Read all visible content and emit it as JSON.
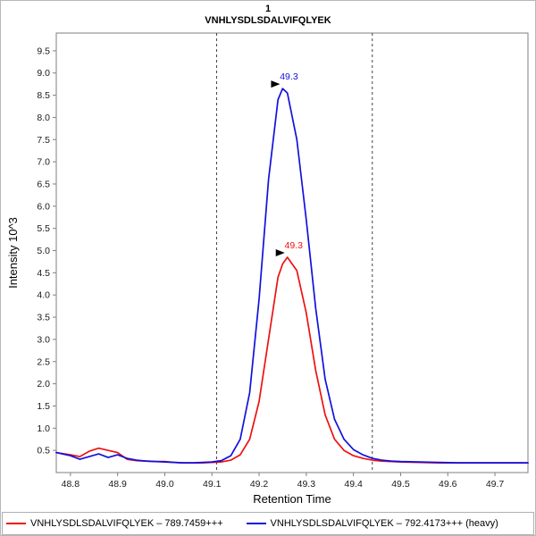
{
  "title": "1",
  "subtitle": "VNHLYSDLSDALVIFQLYEK",
  "chart_data": {
    "type": "line",
    "title": "1",
    "subtitle": "VNHLYSDLSDALVIFQLYEK",
    "xlabel": "Retention Time",
    "ylabel": "Intensity 10^3",
    "xlim": [
      48.77,
      49.77
    ],
    "ylim": [
      0,
      9.9
    ],
    "xticks": [
      48.8,
      48.9,
      49.0,
      49.1,
      49.2,
      49.3,
      49.4,
      49.5,
      49.6,
      49.7
    ],
    "yticks": [
      0.5,
      1.0,
      1.5,
      2.0,
      2.5,
      3.0,
      3.5,
      4.0,
      4.5,
      5.0,
      5.5,
      6.0,
      6.5,
      7.0,
      7.5,
      8.0,
      8.5,
      9.0,
      9.5
    ],
    "grid": false,
    "legend_position": "bottom",
    "boundary_lines_x": [
      49.11,
      49.44
    ],
    "boundary_color": "#444444",
    "series": [
      {
        "name": "light",
        "label": "VNHLYSDLSDALVIFQLYEK – 789.7459+++",
        "color": "#ee1111",
        "x": [
          48.77,
          48.8,
          48.82,
          48.84,
          48.86,
          48.88,
          48.9,
          48.92,
          48.94,
          48.96,
          48.98,
          49.0,
          49.02,
          49.04,
          49.06,
          49.08,
          49.1,
          49.12,
          49.14,
          49.16,
          49.18,
          49.2,
          49.22,
          49.24,
          49.25,
          49.26,
          49.28,
          49.3,
          49.32,
          49.34,
          49.36,
          49.38,
          49.4,
          49.42,
          49.44,
          49.46,
          49.48,
          49.5,
          49.54,
          49.58,
          49.62,
          49.66,
          49.7,
          49.74,
          49.77
        ],
        "y": [
          0.45,
          0.4,
          0.36,
          0.48,
          0.55,
          0.5,
          0.45,
          0.3,
          0.27,
          0.26,
          0.25,
          0.25,
          0.23,
          0.22,
          0.22,
          0.22,
          0.23,
          0.24,
          0.28,
          0.4,
          0.75,
          1.6,
          3.0,
          4.4,
          4.7,
          4.85,
          4.55,
          3.6,
          2.3,
          1.3,
          0.75,
          0.5,
          0.38,
          0.32,
          0.28,
          0.26,
          0.25,
          0.24,
          0.23,
          0.22,
          0.22,
          0.22,
          0.22,
          0.22,
          0.22
        ],
        "peak_annotation": {
          "text": "49.3",
          "x": 49.26,
          "y": 4.85
        }
      },
      {
        "name": "heavy",
        "label": "VNHLYSDLSDALVIFQLYEK – 792.4173+++ (heavy)",
        "color": "#1111dd",
        "x": [
          48.77,
          48.8,
          48.82,
          48.84,
          48.86,
          48.88,
          48.9,
          48.92,
          48.94,
          48.96,
          48.98,
          49.0,
          49.02,
          49.04,
          49.06,
          49.08,
          49.1,
          49.12,
          49.14,
          49.16,
          49.18,
          49.2,
          49.22,
          49.24,
          49.25,
          49.26,
          49.28,
          49.3,
          49.32,
          49.34,
          49.36,
          49.38,
          49.4,
          49.42,
          49.44,
          49.46,
          49.48,
          49.5,
          49.54,
          49.58,
          49.62,
          49.66,
          49.7,
          49.74,
          49.77
        ],
        "y": [
          0.45,
          0.38,
          0.3,
          0.36,
          0.42,
          0.34,
          0.4,
          0.32,
          0.28,
          0.26,
          0.25,
          0.24,
          0.23,
          0.22,
          0.22,
          0.23,
          0.24,
          0.27,
          0.38,
          0.75,
          1.8,
          3.9,
          6.6,
          8.4,
          8.65,
          8.55,
          7.5,
          5.7,
          3.7,
          2.1,
          1.2,
          0.75,
          0.52,
          0.4,
          0.32,
          0.28,
          0.26,
          0.25,
          0.24,
          0.23,
          0.22,
          0.22,
          0.22,
          0.22,
          0.22
        ],
        "peak_annotation": {
          "text": "49.3",
          "x": 49.25,
          "y": 8.65
        }
      }
    ]
  }
}
